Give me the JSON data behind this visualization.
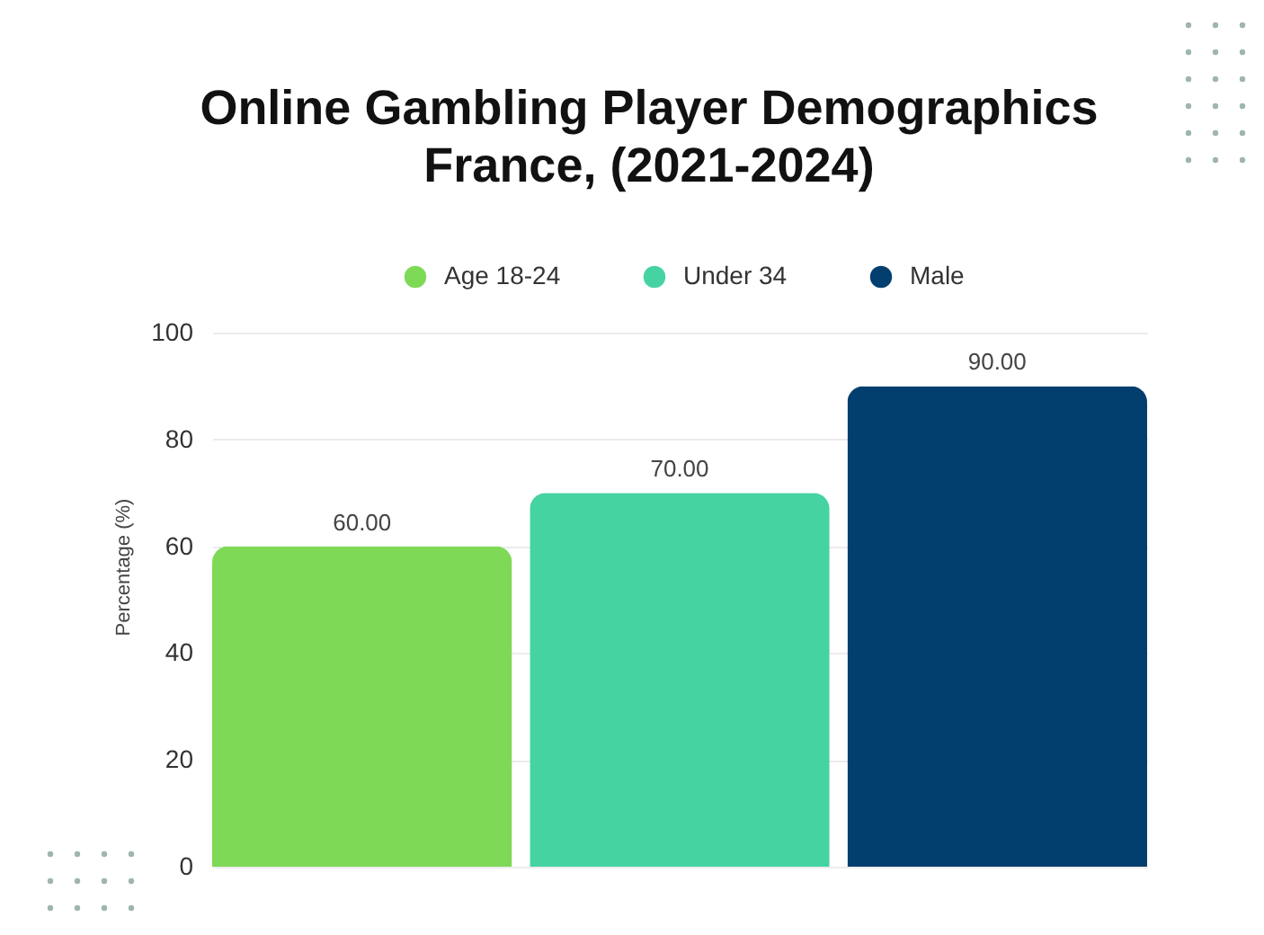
{
  "chart_data": {
    "type": "bar",
    "title": "Online Gambling Player Demographics\nFrance, (2021-2024)",
    "ylabel": "Percentage (%)",
    "categories": [
      null
    ],
    "series": [
      {
        "name": "Age 18-24",
        "color": "#7ed957",
        "values": [
          60
        ],
        "value_labels": [
          "60.00"
        ]
      },
      {
        "name": "Under 34",
        "color": "#45d3a2",
        "values": [
          70
        ],
        "value_labels": [
          "70.00"
        ]
      },
      {
        "name": "Male",
        "color": "#023f6f",
        "values": [
          90
        ],
        "value_labels": [
          "90.00"
        ]
      }
    ],
    "ylim": [
      0,
      100
    ],
    "yticks": [
      0,
      20,
      40,
      60,
      80,
      100
    ],
    "grid": "y",
    "legend": "top",
    "tick_labels": "y"
  }
}
